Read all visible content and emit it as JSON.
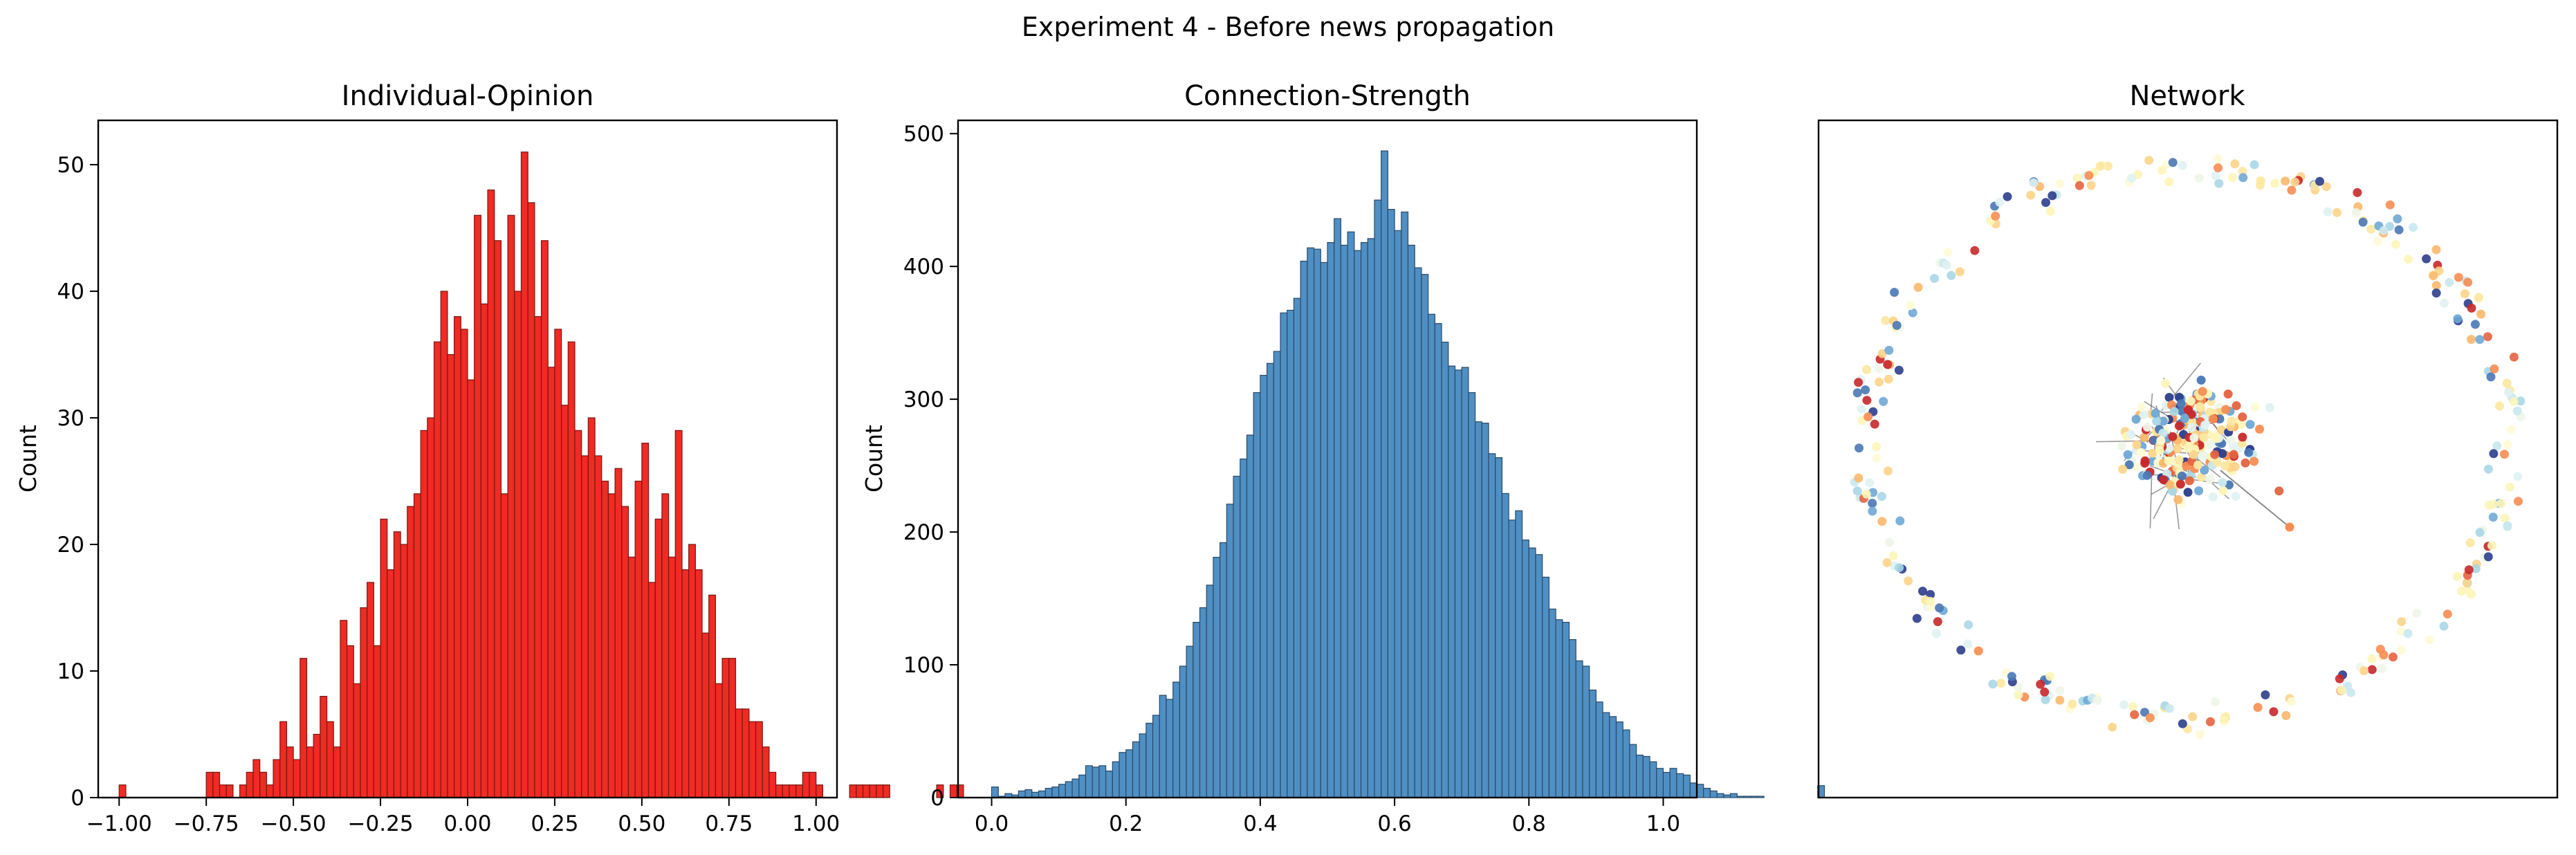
{
  "figure": {
    "title": "Experiment 4 - Before news propagation"
  },
  "chart_data": [
    {
      "type": "bar",
      "title": "Individual-Opinion",
      "xlabel": "",
      "ylabel": "Count",
      "xlim": [
        -1.06,
        1.06
      ],
      "ylim": [
        0,
        53.5
      ],
      "xticks": [
        -1.0,
        -0.75,
        -0.5,
        -0.25,
        0.0,
        0.25,
        0.5,
        0.75,
        1.0
      ],
      "xtick_labels": [
        "−1.00",
        "−0.75",
        "−0.50",
        "−0.25",
        "0.00",
        "0.25",
        "0.50",
        "0.75",
        "1.00"
      ],
      "yticks": [
        0,
        10,
        20,
        30,
        40,
        50
      ],
      "ytick_labels": [
        "0",
        "10",
        "20",
        "30",
        "40",
        "50"
      ],
      "bin_start": -1.0,
      "bin_width": 0.01923,
      "fill_color": "#ef2b24",
      "edge_color": "#7a1512",
      "values": [
        1,
        0,
        0,
        0,
        0,
        0,
        0,
        0,
        0,
        0,
        0,
        0,
        0,
        2,
        2,
        1,
        1,
        0,
        1,
        2,
        3,
        2,
        1,
        3,
        6,
        4,
        3,
        11,
        4,
        5,
        8,
        6,
        4,
        14,
        12,
        9,
        15,
        17,
        12,
        22,
        18,
        21,
        20,
        23,
        24,
        29,
        30,
        36,
        40,
        35,
        38,
        37,
        33,
        46,
        39,
        48,
        44,
        24,
        46,
        40,
        51,
        47,
        38,
        44,
        34,
        37,
        31,
        36,
        29,
        27,
        30,
        27,
        25,
        24,
        26,
        23,
        19,
        25,
        28,
        17,
        22,
        24,
        19,
        29,
        18,
        20,
        18,
        13,
        16,
        9,
        11,
        11,
        7,
        7,
        6,
        6,
        4,
        2,
        1,
        1,
        1,
        1,
        2,
        2,
        1,
        0,
        0,
        0,
        0,
        1,
        1,
        1,
        1,
        1,
        1,
        0,
        0,
        0,
        0,
        0,
        0,
        0,
        1,
        0,
        1,
        1
      ]
    },
    {
      "type": "bar",
      "title": "Connection-Strength",
      "xlabel": "",
      "ylabel": "Count",
      "xlim": [
        -0.05,
        1.05
      ],
      "ylim": [
        0,
        510
      ],
      "xticks": [
        0.0,
        0.2,
        0.4,
        0.6,
        0.8,
        1.0
      ],
      "xtick_labels": [
        "0.0",
        "0.2",
        "0.4",
        "0.6",
        "0.8",
        "1.0"
      ],
      "yticks": [
        0,
        100,
        200,
        300,
        400,
        500
      ],
      "ytick_labels": [
        "0",
        "100",
        "200",
        "300",
        "400",
        "500"
      ],
      "bin_start": 0.0,
      "bin_width": 0.01,
      "fill_color": "#4f8fc4",
      "edge_color": "#2a4a66",
      "values": [
        8,
        1,
        3,
        2,
        5,
        6,
        4,
        5,
        7,
        8,
        10,
        12,
        14,
        17,
        24,
        23,
        24,
        20,
        27,
        34,
        36,
        42,
        48,
        56,
        62,
        77,
        74,
        87,
        99,
        114,
        132,
        143,
        160,
        181,
        192,
        221,
        242,
        255,
        273,
        305,
        318,
        327,
        336,
        365,
        367,
        376,
        404,
        414,
        413,
        403,
        418,
        436,
        416,
        426,
        412,
        418,
        421,
        450,
        487,
        443,
        427,
        441,
        416,
        399,
        394,
        364,
        357,
        343,
        325,
        322,
        324,
        305,
        283,
        282,
        259,
        256,
        229,
        209,
        216,
        194,
        188,
        183,
        166,
        142,
        134,
        132,
        119,
        103,
        99,
        81,
        72,
        64,
        61,
        57,
        51,
        40,
        32,
        31,
        27,
        22,
        19,
        22,
        18,
        17,
        11,
        10,
        7,
        5,
        3,
        2,
        3,
        1,
        1,
        1,
        1,
        0,
        0,
        0,
        0,
        0,
        0,
        0,
        0,
        9
      ]
    },
    {
      "type": "scatter",
      "title": "Network",
      "xlabel": "",
      "ylabel": "",
      "axes": "off",
      "description_nodes": "ring of nodes around a dense central cluster"
    }
  ]
}
